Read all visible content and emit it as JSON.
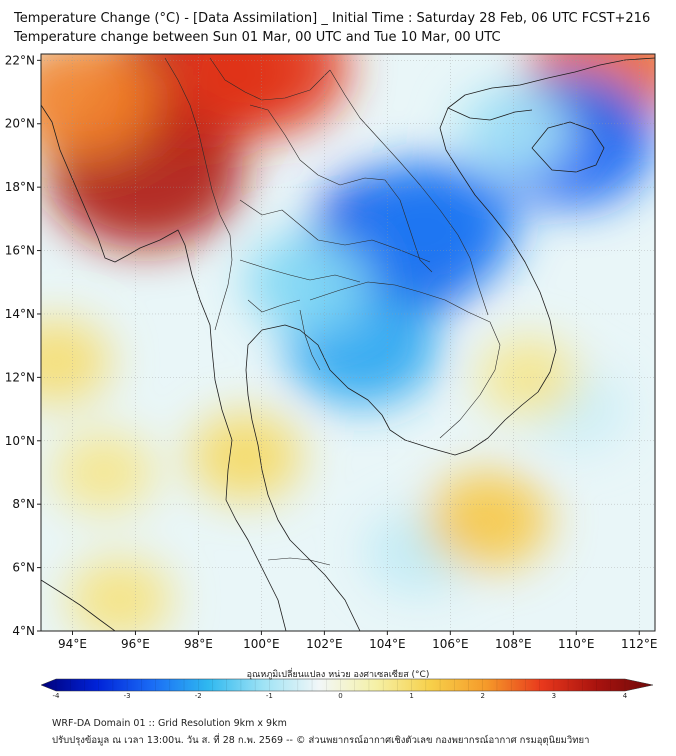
{
  "header": {
    "title_line1": "Temperature Change (°C) - [Data Assimilation] _ Initial Time : Saturday 28 Feb, 06 UTC FCST+216",
    "title_line2": "Temperature change between Sun 01 Mar, 00 UTC and Tue 10 Mar, 00 UTC"
  },
  "map": {
    "region": "Mainland Southeast Asia (Thailand, Myanmar, Laos, Cambodia, Vietnam)",
    "lon_range": [
      93,
      112.5
    ],
    "lat_range": [
      4,
      22.2
    ],
    "lat_ticks": [
      {
        "value": 22,
        "label": "22°N"
      },
      {
        "value": 20,
        "label": "20°N"
      },
      {
        "value": 18,
        "label": "18°N"
      },
      {
        "value": 16,
        "label": "16°N"
      },
      {
        "value": 14,
        "label": "14°N"
      },
      {
        "value": 12,
        "label": "12°N"
      },
      {
        "value": 10,
        "label": "10°N"
      },
      {
        "value": 8,
        "label": "8°N"
      },
      {
        "value": 6,
        "label": "6°N"
      },
      {
        "value": 4,
        "label": "4°N"
      }
    ],
    "lon_ticks": [
      {
        "value": 94,
        "label": "94°E"
      },
      {
        "value": 96,
        "label": "96°E"
      },
      {
        "value": 98,
        "label": "98°E"
      },
      {
        "value": 100,
        "label": "100°E"
      },
      {
        "value": 102,
        "label": "102°E"
      },
      {
        "value": 104,
        "label": "104°E"
      },
      {
        "value": 106,
        "label": "106°E"
      },
      {
        "value": 108,
        "label": "108°E"
      },
      {
        "value": 110,
        "label": "110°E"
      },
      {
        "value": 112,
        "label": "112°E"
      }
    ],
    "anomalies": [
      {
        "name": "warm-west-myanmar",
        "lon": 96.3,
        "lat": 18.5,
        "value": 3.2
      },
      {
        "name": "warm-north-myanmar",
        "lon": 98.0,
        "lat": 21.5,
        "value": 3.0
      },
      {
        "name": "warm-north-border",
        "lon": 100.0,
        "lat": 21.8,
        "value": 2.6
      },
      {
        "name": "warm-northeast-corner",
        "lon": 111.0,
        "lat": 21.8,
        "value": 2.2
      },
      {
        "name": "warm-myanmar-west-coast",
        "lon": 94.3,
        "lat": 20.8,
        "value": 2.0
      },
      {
        "name": "cold-northeast-thailand",
        "lon": 104.5,
        "lat": 16.3,
        "value": -3.0
      },
      {
        "name": "cold-central-laos",
        "lon": 105.5,
        "lat": 16.8,
        "value": -2.4
      },
      {
        "name": "cold-cambodia",
        "lon": 103.2,
        "lat": 13.0,
        "value": -2.0
      },
      {
        "name": "cold-hainan",
        "lon": 109.8,
        "lat": 19.5,
        "value": -2.6
      },
      {
        "name": "cold-gulf-tonkin",
        "lon": 108.0,
        "lat": 19.8,
        "value": -1.0
      },
      {
        "name": "cold-central-thailand",
        "lon": 101.5,
        "lat": 15.0,
        "value": -1.3
      },
      {
        "name": "cool-south-sea",
        "lon": 105.0,
        "lat": 6.5,
        "value": -0.8
      },
      {
        "name": "cool-east-sea",
        "lon": 110.0,
        "lat": 11.0,
        "value": -0.7
      },
      {
        "name": "mild-south-gulf",
        "lon": 107.2,
        "lat": 7.5,
        "value": 1.2
      },
      {
        "name": "mild-peninsula",
        "lon": 99.5,
        "lat": 9.5,
        "value": 0.9
      },
      {
        "name": "mild-andaman",
        "lon": 95.0,
        "lat": 9.0,
        "value": 0.6
      },
      {
        "name": "mild-andaman-south",
        "lon": 95.5,
        "lat": 5.0,
        "value": 0.7
      },
      {
        "name": "mild-sw-corner",
        "lon": 93.5,
        "lat": 12.5,
        "value": 0.8
      },
      {
        "name": "mild-east-cambodia",
        "lon": 108.5,
        "lat": 12.0,
        "value": 0.6
      }
    ]
  },
  "colorbar": {
    "title": "อุณหภูมิเปลี่ยนแปลง หน่วย องศาเซลเซียส (°C)",
    "min": -4,
    "max": 4,
    "ticks": [
      {
        "value": -4,
        "label": "-4"
      },
      {
        "value": -3,
        "label": "-3"
      },
      {
        "value": -2,
        "label": "-2"
      },
      {
        "value": -1,
        "label": "-1"
      },
      {
        "value": 0,
        "label": "0"
      },
      {
        "value": 1,
        "label": "1"
      },
      {
        "value": 2,
        "label": "2"
      },
      {
        "value": 3,
        "label": "3"
      },
      {
        "value": 4,
        "label": "4"
      }
    ],
    "stops": [
      "#00007a",
      "#0022d8",
      "#1a6cf5",
      "#2fb8f0",
      "#9fe3f5",
      "#f2f7f8",
      "#f5f1a8",
      "#f7d04a",
      "#f59a2a",
      "#e8381c",
      "#a8120e",
      "#6e0a0a"
    ]
  },
  "footer": {
    "line1": "WRF-DA Domain 01 :: Grid Resolution 9km x 9km",
    "line2": "ปรับปรุงข้อมูล ณ เวลา 13:00น. วัน ส. ที่ 28 ก.พ. 2569 -- © ส่วนพยากรณ์อากาศเชิงตัวเลข กองพยากรณ์อากาศ กรมอุตุนิยมวิทยา"
  }
}
